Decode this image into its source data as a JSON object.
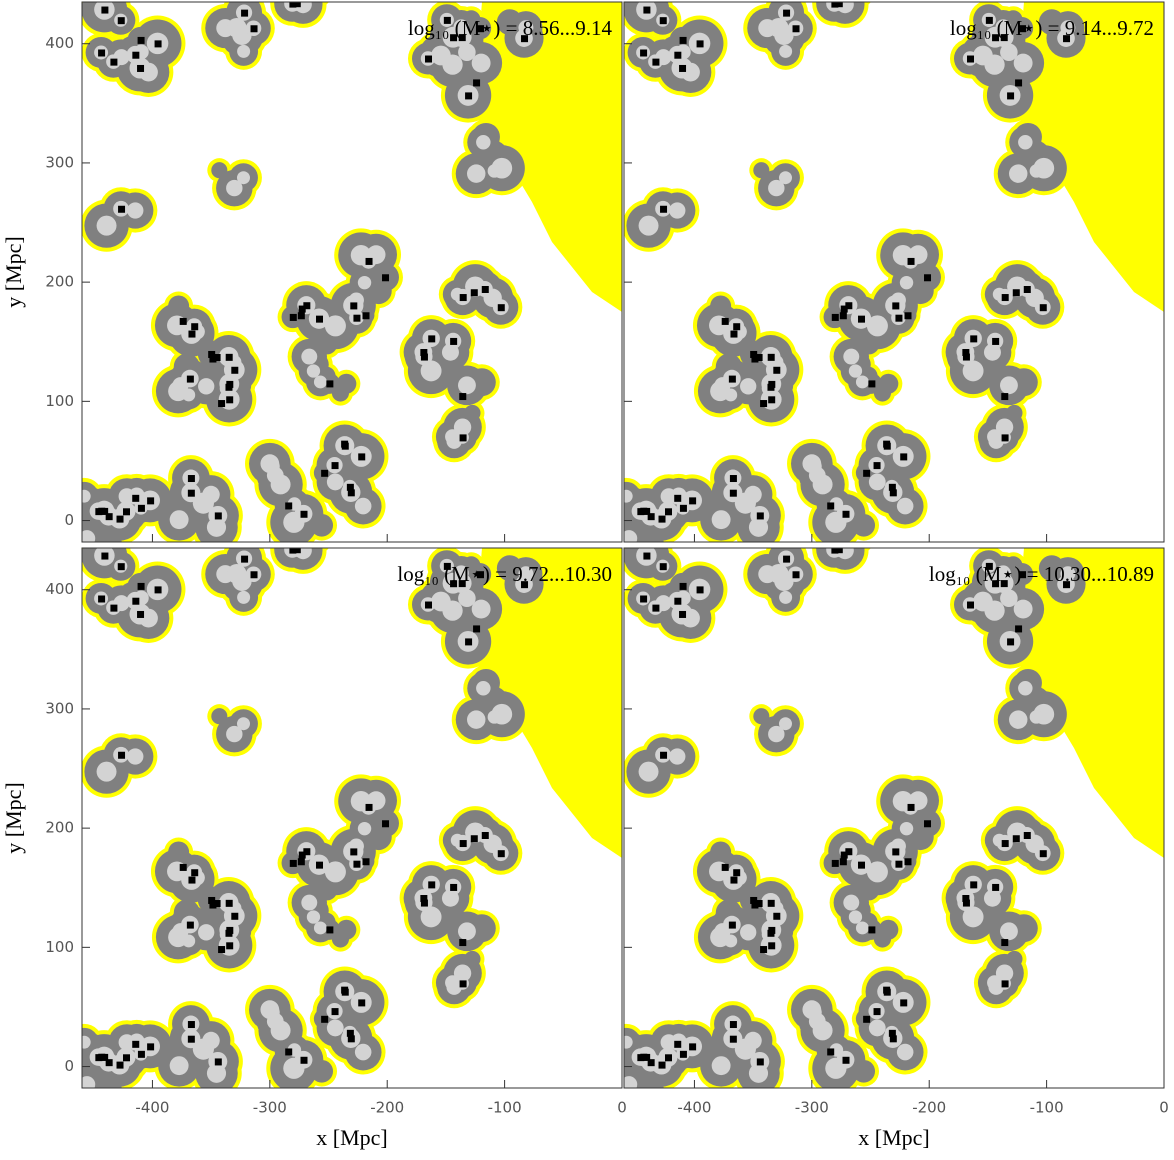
{
  "chart_data": [
    {
      "type": "map",
      "title": "log₁₀ (M⋆) = 8.56...9.14",
      "ylabel": "y [Mpc]",
      "xlim": [
        -460,
        0
      ],
      "xticks": [
        -400,
        -300,
        -200,
        -100,
        0
      ],
      "ylim": [
        -18,
        435
      ],
      "yticks": [
        0,
        100,
        200,
        300,
        400
      ]
    },
    {
      "type": "map",
      "title": "log₁₀ (M⋆) = 9.14...9.72",
      "xlim": [
        -460,
        0
      ],
      "xticks": [
        -400,
        -300,
        -200,
        -100,
        0
      ],
      "ylim": [
        -18,
        435
      ],
      "yticks": [
        0,
        100,
        200,
        300,
        400
      ]
    },
    {
      "type": "map",
      "title": "log₁₀ (M⋆) = 9.72...10.30",
      "xlabel": "x [Mpc]",
      "ylabel": "y [Mpc]",
      "xlim": [
        -460,
        0
      ],
      "xticks": [
        -400,
        -300,
        -200,
        -100,
        0
      ],
      "ylim": [
        -18,
        435
      ],
      "yticks": [
        0,
        100,
        200,
        300,
        400
      ]
    },
    {
      "type": "map",
      "title": "log₁₀ (M⋆) = 10.30...10.89",
      "xlabel": "x [Mpc]",
      "xlim": [
        -460,
        0
      ],
      "xticks": [
        -400,
        -300,
        -200,
        -100,
        0
      ],
      "ylim": [
        -18,
        435
      ],
      "yticks": [
        0,
        100,
        200,
        300,
        400
      ]
    }
  ]
}
